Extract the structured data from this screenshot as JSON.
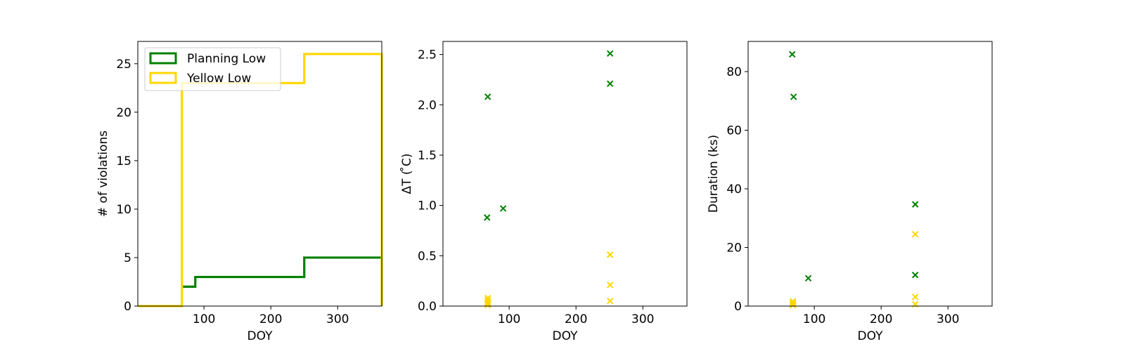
{
  "chart_data": [
    {
      "type": "histogram-step",
      "xlabel": "DOY",
      "ylabel": "# of violations",
      "xlim": [
        1,
        366
      ],
      "ylim": [
        0,
        27.3
      ],
      "xticks": [
        100,
        200,
        300
      ],
      "yticks": [
        0,
        5,
        10,
        15,
        20,
        25
      ],
      "legend_position": "top-left",
      "series": [
        {
          "name": "Planning Low",
          "color": "#008000",
          "steps": [
            [
              67,
              2
            ],
            [
              87,
              3
            ],
            [
              250,
              5
            ],
            [
              366,
              5
            ]
          ]
        },
        {
          "name": "Yellow Low",
          "color": "#FFD700",
          "steps": [
            [
              1,
              0
            ],
            [
              67,
              23
            ],
            [
              250,
              26
            ],
            [
              366,
              26
            ]
          ]
        }
      ]
    },
    {
      "type": "scatter",
      "xlabel": "DOY",
      "ylabel": "ΔT ( ̊C)",
      "xlim": [
        1,
        366
      ],
      "ylim": [
        0,
        2.63
      ],
      "xticks": [
        100,
        200,
        300
      ],
      "yticks": [
        0.0,
        0.5,
        1.0,
        1.5,
        2.0,
        2.5
      ],
      "marker": "x",
      "series": [
        {
          "color": "#008000",
          "points": [
            [
              68,
              2.08
            ],
            [
              67,
              0.88
            ],
            [
              91,
              0.97
            ],
            [
              251,
              2.51
            ],
            [
              251,
              2.21
            ]
          ]
        },
        {
          "color": "#FFD700",
          "points": [
            [
              68,
              0.08
            ],
            [
              68,
              0.06
            ],
            [
              68,
              0.04
            ],
            [
              68,
              0.03
            ],
            [
              68,
              0.02
            ],
            [
              68,
              0.01
            ],
            [
              251,
              0.51
            ],
            [
              251,
              0.21
            ],
            [
              251,
              0.05
            ]
          ]
        }
      ]
    },
    {
      "type": "scatter",
      "xlabel": "DOY",
      "ylabel": "Duration (ks)",
      "xlim": [
        1,
        366
      ],
      "ylim": [
        0,
        90.3
      ],
      "xticks": [
        100,
        200,
        300
      ],
      "yticks": [
        0,
        20,
        40,
        60,
        80
      ],
      "marker": "x",
      "series": [
        {
          "color": "#008000",
          "points": [
            [
              67,
              85.9
            ],
            [
              69,
              71.4
            ],
            [
              91,
              9.5
            ],
            [
              251,
              34.7
            ],
            [
              251,
              10.6
            ]
          ]
        },
        {
          "color": "#FFD700",
          "points": [
            [
              68,
              1.6
            ],
            [
              68,
              1.2
            ],
            [
              68,
              0.8
            ],
            [
              68,
              0.5
            ],
            [
              68,
              0.3
            ],
            [
              251,
              24.5
            ],
            [
              251,
              3.1
            ],
            [
              251,
              0.6
            ]
          ]
        }
      ]
    }
  ]
}
